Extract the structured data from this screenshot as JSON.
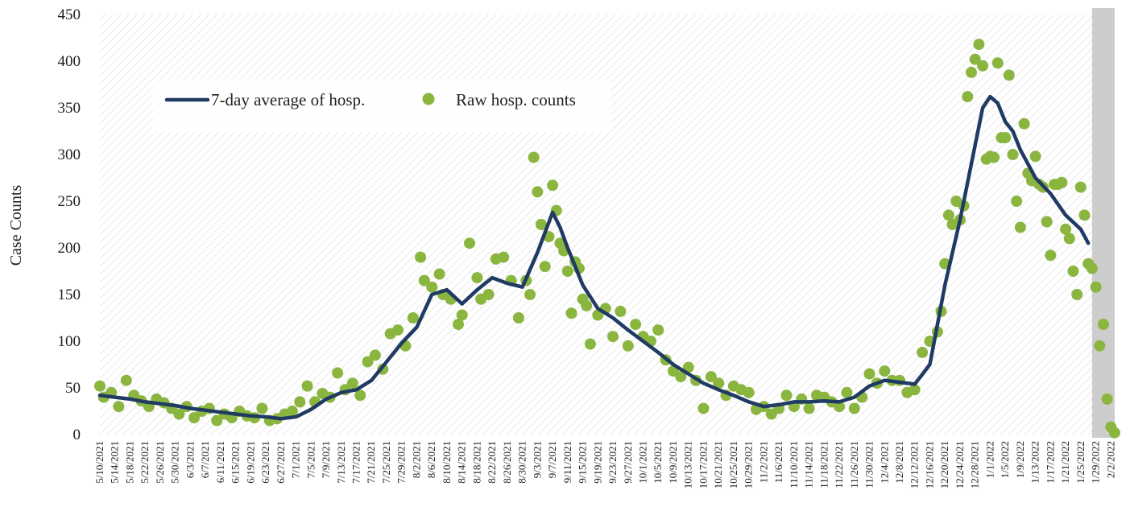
{
  "colors": {
    "average_line": "#1f3a63",
    "raw_points": "#8ab53f",
    "shade": "#c8c8c8",
    "hatch": "#d9d9d9"
  },
  "chart_data": {
    "type": "line",
    "title": "",
    "xlabel": "",
    "ylabel": "Case Counts",
    "ylim": [
      0,
      450
    ],
    "yticks": [
      0,
      50,
      100,
      150,
      200,
      250,
      300,
      350,
      400,
      450
    ],
    "grid": false,
    "legend_position": "top-left",
    "x_tick_labels": [
      "5/10/2021",
      "5/14/2021",
      "5/18/2021",
      "5/22/2021",
      "5/26/2021",
      "5/30/2021",
      "6/3/2021",
      "6/7/2021",
      "6/11/2021",
      "6/15/2021",
      "6/19/2021",
      "6/23/2021",
      "6/27/2021",
      "7/1/2021",
      "7/5/2021",
      "7/9/2021",
      "7/13/2021",
      "7/17/2021",
      "7/21/2021",
      "7/25/2021",
      "7/29/2021",
      "8/2/2021",
      "8/6/2021",
      "8/10/2021",
      "8/14/2021",
      "8/18/2021",
      "8/22/2021",
      "8/26/2021",
      "8/30/2021",
      "9/3/2021",
      "9/7/2021",
      "9/11/2021",
      "9/15/2021",
      "9/19/2021",
      "9/23/2021",
      "9/27/2021",
      "10/1/2021",
      "10/5/2021",
      "10/9/2021",
      "10/13/2021",
      "10/17/2021",
      "10/21/2021",
      "10/25/2021",
      "10/29/2021",
      "11/2/2021",
      "11/6/2021",
      "11/10/2021",
      "11/14/2021",
      "11/18/2021",
      "11/22/2021",
      "11/26/2021",
      "11/30/2021",
      "12/4/2021",
      "12/8/2021",
      "12/12/2021",
      "12/16/2021",
      "12/20/2021",
      "12/24/2021",
      "12/28/2021",
      "1/1/2022",
      "1/5/2022",
      "1/9/2022",
      "1/13/2022",
      "1/17/2022",
      "1/21/2022",
      "1/25/2022",
      "1/29/2022",
      "2/2/2022"
    ],
    "shaded_region": {
      "start": "1/28/2022",
      "end": "2/3/2022"
    },
    "series": [
      {
        "name": "7-day average of hosp.",
        "type": "line",
        "x": [
          "5/10/2021",
          "5/14/2021",
          "5/18/2021",
          "5/22/2021",
          "5/26/2021",
          "5/30/2021",
          "6/3/2021",
          "6/7/2021",
          "6/11/2021",
          "6/15/2021",
          "6/19/2021",
          "6/23/2021",
          "6/27/2021",
          "7/1/2021",
          "7/5/2021",
          "7/9/2021",
          "7/13/2021",
          "7/17/2021",
          "7/21/2021",
          "7/25/2021",
          "7/29/2021",
          "8/2/2021",
          "8/6/2021",
          "8/10/2021",
          "8/14/2021",
          "8/18/2021",
          "8/22/2021",
          "8/26/2021",
          "8/30/2021",
          "9/3/2021",
          "9/7/2021",
          "9/9/2021",
          "9/11/2021",
          "9/15/2021",
          "9/19/2021",
          "9/23/2021",
          "9/27/2021",
          "10/1/2021",
          "10/5/2021",
          "10/9/2021",
          "10/13/2021",
          "10/17/2021",
          "10/21/2021",
          "10/25/2021",
          "10/29/2021",
          "11/2/2021",
          "11/6/2021",
          "11/10/2021",
          "11/14/2021",
          "11/18/2021",
          "11/22/2021",
          "11/26/2021",
          "11/30/2021",
          "12/4/2021",
          "12/8/2021",
          "12/12/2021",
          "12/16/2021",
          "12/20/2021",
          "12/24/2021",
          "12/28/2021",
          "12/30/2021",
          "1/1/2022",
          "1/3/2022",
          "1/5/2022",
          "1/7/2022",
          "1/9/2022",
          "1/13/2022",
          "1/17/2022",
          "1/21/2022",
          "1/25/2022",
          "1/27/2022"
        ],
        "values": [
          42,
          40,
          38,
          35,
          33,
          31,
          28,
          26,
          24,
          22,
          20,
          19,
          17,
          19,
          27,
          38,
          45,
          48,
          58,
          78,
          98,
          115,
          150,
          155,
          140,
          155,
          168,
          162,
          158,
          195,
          238,
          222,
          200,
          160,
          135,
          125,
          112,
          100,
          88,
          75,
          65,
          55,
          48,
          42,
          35,
          30,
          32,
          35,
          35,
          36,
          35,
          40,
          52,
          58,
          56,
          54,
          75,
          160,
          230,
          310,
          350,
          362,
          355,
          335,
          325,
          305,
          275,
          258,
          235,
          220,
          205
        ]
      },
      {
        "name": "Raw hosp. counts",
        "type": "scatter",
        "x": [
          "5/10/2021",
          "5/11/2021",
          "5/13/2021",
          "5/15/2021",
          "5/17/2021",
          "5/19/2021",
          "5/21/2021",
          "5/23/2021",
          "5/25/2021",
          "5/27/2021",
          "5/29/2021",
          "5/31/2021",
          "6/2/2021",
          "6/4/2021",
          "6/6/2021",
          "6/8/2021",
          "6/10/2021",
          "6/12/2021",
          "6/14/2021",
          "6/16/2021",
          "6/18/2021",
          "6/20/2021",
          "6/22/2021",
          "6/24/2021",
          "6/26/2021",
          "6/28/2021",
          "6/30/2021",
          "7/2/2021",
          "7/4/2021",
          "7/6/2021",
          "7/8/2021",
          "7/10/2021",
          "7/12/2021",
          "7/14/2021",
          "7/16/2021",
          "7/18/2021",
          "7/20/2021",
          "7/22/2021",
          "7/24/2021",
          "7/26/2021",
          "7/28/2021",
          "7/30/2021",
          "8/1/2021",
          "8/3/2021",
          "8/4/2021",
          "8/6/2021",
          "8/8/2021",
          "8/9/2021",
          "8/11/2021",
          "8/13/2021",
          "8/14/2021",
          "8/16/2021",
          "8/18/2021",
          "8/19/2021",
          "8/21/2021",
          "8/23/2021",
          "8/25/2021",
          "8/27/2021",
          "8/29/2021",
          "8/31/2021",
          "9/1/2021",
          "9/2/2021",
          "9/3/2021",
          "9/4/2021",
          "9/5/2021",
          "9/6/2021",
          "9/7/2021",
          "9/8/2021",
          "9/9/2021",
          "9/10/2021",
          "9/11/2021",
          "9/12/2021",
          "9/13/2021",
          "9/14/2021",
          "9/15/2021",
          "9/16/2021",
          "9/17/2021",
          "9/19/2021",
          "9/21/2021",
          "9/23/2021",
          "9/25/2021",
          "9/27/2021",
          "9/29/2021",
          "10/1/2021",
          "10/3/2021",
          "10/5/2021",
          "10/7/2021",
          "10/9/2021",
          "10/11/2021",
          "10/13/2021",
          "10/15/2021",
          "10/17/2021",
          "10/19/2021",
          "10/21/2021",
          "10/23/2021",
          "10/25/2021",
          "10/27/2021",
          "10/29/2021",
          "10/31/2021",
          "11/2/2021",
          "11/4/2021",
          "11/6/2021",
          "11/8/2021",
          "11/10/2021",
          "11/12/2021",
          "11/14/2021",
          "11/16/2021",
          "11/18/2021",
          "11/20/2021",
          "11/22/2021",
          "11/24/2021",
          "11/26/2021",
          "11/28/2021",
          "11/30/2021",
          "12/2/2021",
          "12/4/2021",
          "12/6/2021",
          "12/8/2021",
          "12/10/2021",
          "12/12/2021",
          "12/14/2021",
          "12/16/2021",
          "12/18/2021",
          "12/19/2021",
          "12/20/2021",
          "12/21/2021",
          "12/22/2021",
          "12/23/2021",
          "12/24/2021",
          "12/25/2021",
          "12/26/2021",
          "12/27/2021",
          "12/28/2021",
          "12/29/2021",
          "12/30/2021",
          "12/31/2021",
          "1/1/2022",
          "1/2/2022",
          "1/3/2022",
          "1/4/2022",
          "1/5/2022",
          "1/6/2022",
          "1/7/2022",
          "1/8/2022",
          "1/9/2022",
          "1/10/2022",
          "1/11/2022",
          "1/12/2022",
          "1/13/2022",
          "1/14/2022",
          "1/15/2022",
          "1/16/2022",
          "1/17/2022",
          "1/18/2022",
          "1/19/2022",
          "1/20/2022",
          "1/21/2022",
          "1/22/2022",
          "1/23/2022",
          "1/24/2022",
          "1/25/2022",
          "1/26/2022",
          "1/27/2022",
          "1/28/2022",
          "1/29/2022",
          "1/30/2022",
          "1/31/2022",
          "2/1/2022",
          "2/2/2022",
          "2/3/2022"
        ],
        "values": [
          52,
          40,
          45,
          30,
          58,
          42,
          36,
          30,
          38,
          34,
          28,
          22,
          30,
          18,
          25,
          28,
          15,
          22,
          18,
          25,
          20,
          18,
          28,
          15,
          17,
          22,
          25,
          35,
          52,
          35,
          44,
          40,
          66,
          48,
          55,
          42,
          78,
          85,
          70,
          108,
          112,
          95,
          125,
          190,
          165,
          158,
          172,
          150,
          145,
          118,
          128,
          205,
          168,
          145,
          150,
          188,
          190,
          165,
          125,
          165,
          150,
          297,
          260,
          225,
          180,
          212,
          267,
          240,
          205,
          197,
          175,
          130,
          185,
          178,
          145,
          138,
          97,
          128,
          135,
          105,
          132,
          95,
          118,
          105,
          100,
          112,
          80,
          68,
          62,
          72,
          58,
          28,
          62,
          55,
          42,
          52,
          48,
          45,
          27,
          30,
          22,
          28,
          42,
          30,
          38,
          28,
          42,
          40,
          35,
          30,
          45,
          28,
          40,
          65,
          55,
          68,
          58,
          58,
          45,
          48,
          88,
          100,
          110,
          132,
          183,
          235,
          225,
          250,
          230,
          245,
          362,
          388,
          402,
          418,
          395,
          295,
          298,
          297,
          398,
          318,
          318,
          385,
          300,
          250,
          222,
          333,
          280,
          272,
          298,
          268,
          265,
          228,
          192,
          268,
          268,
          270,
          220,
          210,
          175,
          150,
          265,
          235,
          183,
          178,
          158,
          95,
          118,
          38,
          8,
          2
        ]
      }
    ]
  }
}
